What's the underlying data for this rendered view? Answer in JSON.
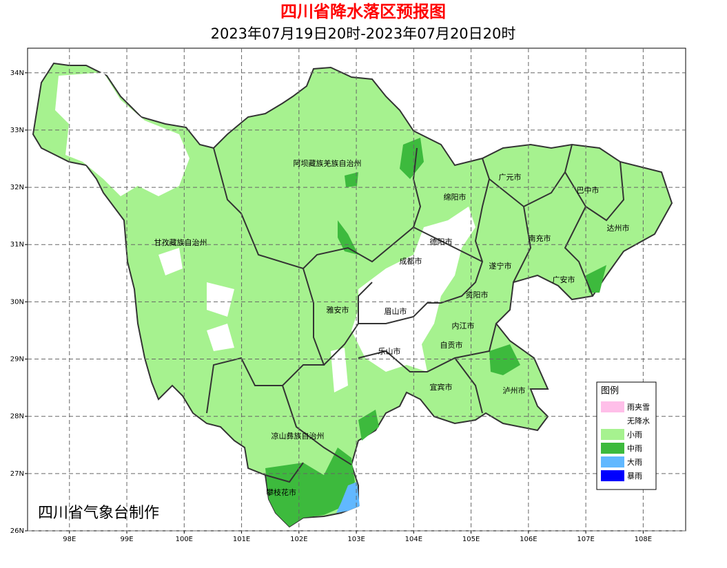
{
  "title": "四川省降水落区预报图",
  "subtitle": "2023年07月19日20时-2023年07月20日20时",
  "credit": "四川省气象台制作",
  "map": {
    "xlim": [
      97.27,
      108.74
    ],
    "ylim": [
      26,
      34.43
    ],
    "xticks": [
      {
        "value": 98,
        "label": "98E"
      },
      {
        "value": 99,
        "label": "99E"
      },
      {
        "value": 100,
        "label": "100E"
      },
      {
        "value": 101,
        "label": "101E"
      },
      {
        "value": 102,
        "label": "102E"
      },
      {
        "value": 103,
        "label": "103E"
      },
      {
        "value": 104,
        "label": "104E"
      },
      {
        "value": 105,
        "label": "105E"
      },
      {
        "value": 106,
        "label": "106E"
      },
      {
        "value": 107,
        "label": "107E"
      },
      {
        "value": 108,
        "label": "108E"
      }
    ],
    "yticks": [
      {
        "value": 26,
        "label": "26N"
      },
      {
        "value": 27,
        "label": "27N"
      },
      {
        "value": 28,
        "label": "28N"
      },
      {
        "value": 29,
        "label": "29N"
      },
      {
        "value": 30,
        "label": "30N"
      },
      {
        "value": 31,
        "label": "31N"
      },
      {
        "value": 32,
        "label": "32N"
      },
      {
        "value": 33,
        "label": "33N"
      },
      {
        "value": 34,
        "label": "34N"
      }
    ],
    "grid": true,
    "regions": [
      "阿坝藏族羌族自治州",
      "甘孜藏族自治州",
      "绵阳市",
      "广元市",
      "巴中市",
      "达州市",
      "南充市",
      "德阳市",
      "成都市",
      "遂宁市",
      "广安市",
      "资阳市",
      "雅安市",
      "眉山市",
      "内江市",
      "自贡市",
      "乐山市",
      "宜宾市",
      "泸州市",
      "凉山彝族自治州",
      "攀枝花市"
    ]
  },
  "legend": {
    "title": "图例",
    "items": [
      {
        "name": "雨夹雪",
        "color": "#ffbfe9"
      },
      {
        "name": "无降水",
        "color": "#ffffff"
      },
      {
        "name": "小雨",
        "color": "#a6f28f"
      },
      {
        "name": "中雨",
        "color": "#3dba3d"
      },
      {
        "name": "大雨",
        "color": "#61b8ff"
      },
      {
        "name": "暴雨",
        "color": "#0000fe"
      }
    ]
  }
}
